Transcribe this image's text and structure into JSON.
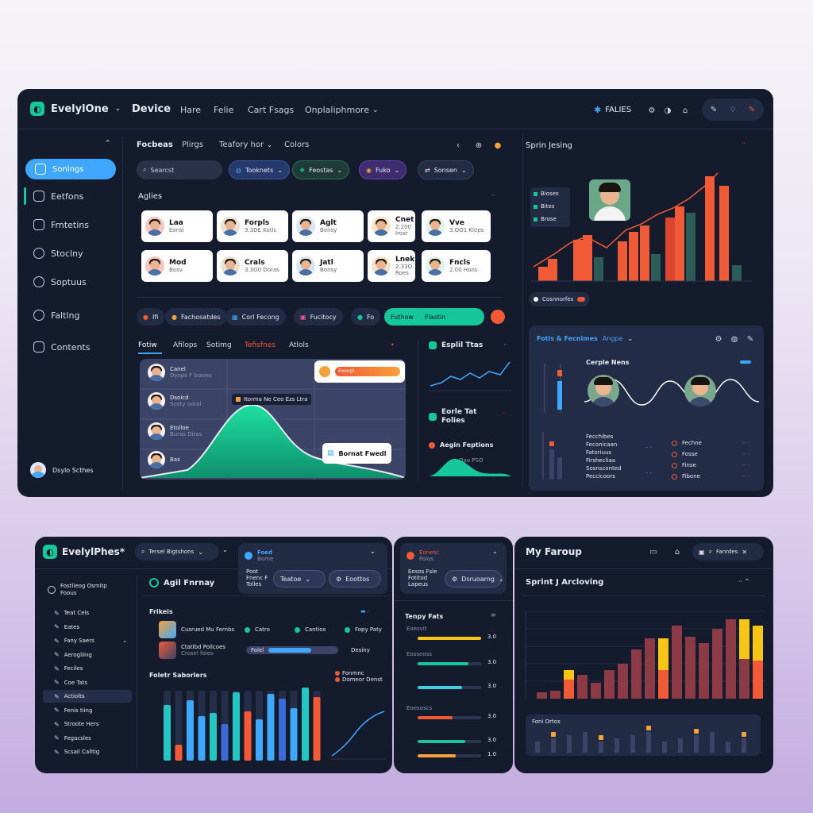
{
  "top": {
    "brand": "EvelylOne",
    "nav": [
      "Device",
      "Hare",
      "Felie",
      "Cart Fsags",
      "Onplaliphmore"
    ],
    "right_label": "FALIES",
    "filters_tabs": [
      "Focbeas",
      "Plirgs",
      "Teafory hor",
      "Colors"
    ],
    "search_placeholder": "Searcst",
    "chips": [
      "Tooknets",
      "Feostas",
      "Fuko",
      "Sonsen"
    ],
    "section_label": "Aglies",
    "cards": [
      {
        "name": "Laa",
        "sub": "Eonsl"
      },
      {
        "name": "Forpls",
        "sub": "3.3DE Kotls"
      },
      {
        "name": "Aglt",
        "sub": "Bonsy"
      },
      {
        "name": "Cnet",
        "sub": "2.200 Irosr"
      },
      {
        "name": "Vve",
        "sub": "3.OO1 Klops"
      },
      {
        "name": "Mod",
        "sub": "Bosv"
      },
      {
        "name": "Crals",
        "sub": "3.3O0 Doras"
      },
      {
        "name": "Jatl",
        "sub": "Bonsy"
      },
      {
        "name": "Lnek",
        "sub": "2.33O Roes"
      },
      {
        "name": "Fncls",
        "sub": "2.00 Hons"
      }
    ],
    "action_pills": [
      "Ifi",
      "Fachosatdes",
      "Corl Fecong",
      "Fucitocy",
      "Fo",
      "Futhow",
      "Flastin"
    ],
    "lower_tabs": [
      "Fotiw",
      "Afilops",
      "Sotimg",
      "Tefisfnes",
      "Atlols"
    ],
    "area_list": [
      {
        "name": "Canel",
        "sub": "Dyops F boxies"
      },
      {
        "name": "Dsoicd",
        "sub": "Scoty ooral"
      },
      {
        "name": "Etolloe",
        "sub": "Buras Diras"
      },
      {
        "name": "Bas",
        "sub": ""
      }
    ],
    "area_tooltip": "Itorma Ne Ceo Ezs Ltra",
    "area_badge": "Exonpl",
    "area_note": "Bornat Fwedl",
    "sidebar": [
      "Sonlngs",
      "Eetfons",
      "Frntetins",
      "Stoclny",
      "Soptuus",
      "Faltlng",
      "Contents"
    ],
    "sidebar_footer": "Dsylo Scthes",
    "mid_right": {
      "title1": "Esplil Ttas",
      "title2": "Eorle Tat Folies",
      "title3": "Aegin Feptions",
      "sub3": "Oao PSO"
    },
    "sprint_title": "Sprin Jesing",
    "sprint_legend": [
      "Bioses",
      "Bites",
      "Brose"
    ],
    "sprint_footer": "Cosnnorfes",
    "bottom_right": {
      "title": "Fotis & Fecnimes",
      "sub": "Angpe",
      "wave_title": "Cerple Nens",
      "list_left": [
        "Fecchibes",
        "Feconicaan",
        "Fatoriuus",
        "Firshecliaa",
        "Sosnsconted",
        "Peccicoors"
      ],
      "list_right": [
        "Fechne",
        "Fosse",
        "Finse",
        "Fibone"
      ]
    }
  },
  "bottom": {
    "brand": "EvelylPhes*",
    "search_placeholder": "Tersel Bigtshons",
    "project_title": "Agil Fnrnay",
    "project_card": {
      "name": "Foed",
      "sub": "Bome"
    },
    "project_card_lines": [
      "Poot",
      "Fnenc F",
      "Tolles"
    ],
    "buttons": [
      "Teatoe",
      "Eoottos"
    ],
    "left_menu_header": "Fostlieog Osmitp Foous",
    "left_menu": [
      "Teat Cels",
      "Eates",
      "Fany Saers",
      "Aerogliing",
      "Feciles",
      "Coe Tats",
      "Actiolts",
      "Fenis tiing",
      "Stroote Hers",
      "Fegacsles",
      "Scsail Calltig"
    ],
    "tasks_title": "Frikeis",
    "task_items": [
      {
        "title": "Cusrued Mu Fernbs",
        "chip1": "Catro",
        "chip2": "Cantios",
        "chip3": "Fopy Paty"
      },
      {
        "title": "Ctatlbd Pollcoes",
        "sub": "Crosel foles",
        "chip1": "Folel",
        "chip2": "Desiny"
      }
    ],
    "bars_title": "Foletr Saborlers",
    "bars_legend": [
      "Fonmnc",
      "Domeor Denst"
    ],
    "mid_panel": {
      "header": "Eonesc",
      "header_sub": "Folos",
      "card_lines": [
        "Eosos Fsle",
        "Fotitod",
        "Lapeus"
      ],
      "button": "Dsruoarng",
      "list_title": "Tenpy Fats",
      "rows": [
        {
          "label": "Eoesvit",
          "value": "3.0"
        },
        {
          "label": "Eosseoss",
          "value": "3.0"
        },
        {
          "label": "",
          "value": "3.0"
        },
        {
          "label": "Eoesoscs",
          "value": "3.0"
        },
        {
          "label": "",
          "value": "3.0"
        },
        {
          "label": "",
          "value": "1.0"
        }
      ]
    },
    "right_panel": {
      "title": "My Faroup",
      "action": "Fanrdes",
      "chart_title": "Sprint J Arcloving",
      "mini_title": "Foni Ortos"
    }
  },
  "colors": {
    "accent_orange": "#f15a36",
    "accent_green": "#16c79a",
    "accent_blue": "#3fa7ff",
    "panel": "#141b2d"
  }
}
